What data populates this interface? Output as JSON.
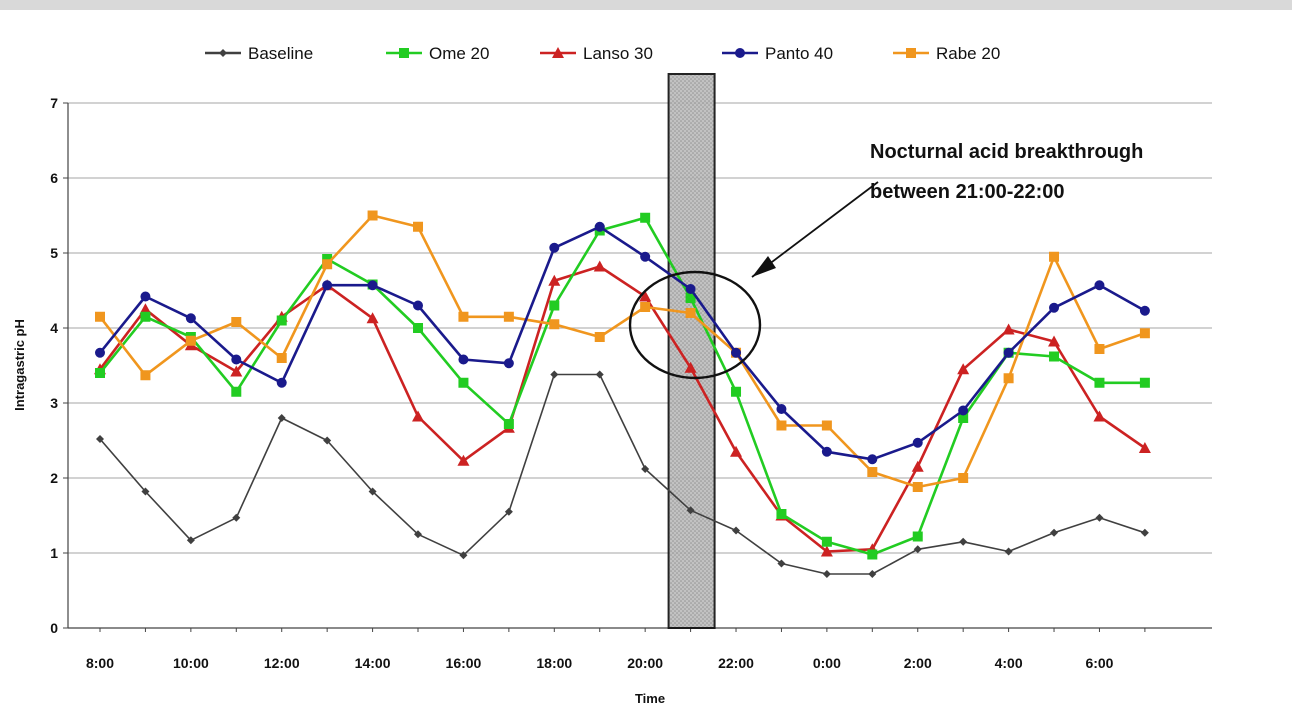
{
  "chart_data": {
    "type": "line",
    "title": "",
    "xlabel": "Time",
    "ylabel": "Intragastric pH",
    "ylim": [
      0,
      7
    ],
    "yticks": [
      "0",
      "1",
      "2",
      "3",
      "4",
      "5",
      "6",
      "7"
    ],
    "grid": "horizontal",
    "legend_position": "top",
    "categories": [
      "8:00",
      "9:00",
      "10:00",
      "11:00",
      "12:00",
      "13:00",
      "14:00",
      "15:00",
      "16:00",
      "17:00",
      "18:00",
      "19:00",
      "20:00",
      "21:00",
      "22:00",
      "23:00",
      "0:00",
      "1:00",
      "2:00",
      "3:00",
      "4:00",
      "5:00",
      "6:00",
      "7:00"
    ],
    "tick_labels": [
      "8:00",
      "10:00",
      "12:00",
      "14:00",
      "16:00",
      "18:00",
      "20:00",
      "22:00",
      "0:00",
      "2:00",
      "4:00",
      "6:00"
    ],
    "series": [
      {
        "name": "Baseline",
        "color": "#404040",
        "marker": "diamond",
        "values": [
          2.52,
          1.82,
          1.17,
          1.47,
          2.8,
          2.5,
          1.82,
          1.25,
          0.97,
          1.55,
          3.38,
          3.38,
          2.12,
          1.57,
          1.3,
          0.86,
          0.72,
          0.72,
          1.05,
          1.15,
          1.02,
          1.27,
          1.47,
          1.27
        ]
      },
      {
        "name": "Ome 20",
        "color": "#22cc22",
        "marker": "square",
        "values": [
          3.4,
          4.15,
          3.88,
          3.15,
          4.1,
          4.92,
          4.58,
          4.0,
          3.27,
          2.72,
          4.3,
          5.3,
          5.47,
          4.4,
          3.15,
          1.52,
          1.15,
          0.98,
          1.22,
          2.8,
          3.67,
          3.62,
          3.27,
          3.27
        ]
      },
      {
        "name": "Lanso 30",
        "color": "#cc2222",
        "marker": "triangle",
        "values": [
          3.45,
          4.25,
          3.77,
          3.42,
          4.15,
          4.57,
          4.13,
          2.82,
          2.23,
          2.67,
          4.63,
          4.82,
          4.42,
          3.47,
          2.35,
          1.5,
          1.02,
          1.05,
          2.15,
          3.45,
          3.98,
          3.82,
          2.82,
          2.4
        ]
      },
      {
        "name": "Panto 40",
        "color": "#1a1a8c",
        "marker": "circle",
        "values": [
          3.67,
          4.42,
          4.13,
          3.58,
          3.27,
          4.57,
          4.57,
          4.3,
          3.58,
          3.53,
          5.07,
          5.35,
          4.95,
          4.52,
          3.67,
          2.92,
          2.35,
          2.25,
          2.47,
          2.9,
          3.67,
          4.27,
          4.57,
          4.23
        ]
      },
      {
        "name": "Rabe 20",
        "color": "#f0961e",
        "marker": "square",
        "values": [
          4.15,
          3.37,
          3.83,
          4.08,
          3.6,
          4.85,
          5.5,
          5.35,
          4.15,
          4.15,
          4.05,
          3.88,
          4.28,
          4.2,
          3.67,
          2.7,
          2.7,
          2.08,
          1.88,
          2.0,
          3.33,
          4.95,
          3.72,
          3.93
        ]
      }
    ],
    "annotation": {
      "line1": "Nocturnal acid breakthrough",
      "line2": "between 21:00-22:00"
    },
    "highlight_band": {
      "from": "21:00",
      "to": "22:00"
    }
  }
}
